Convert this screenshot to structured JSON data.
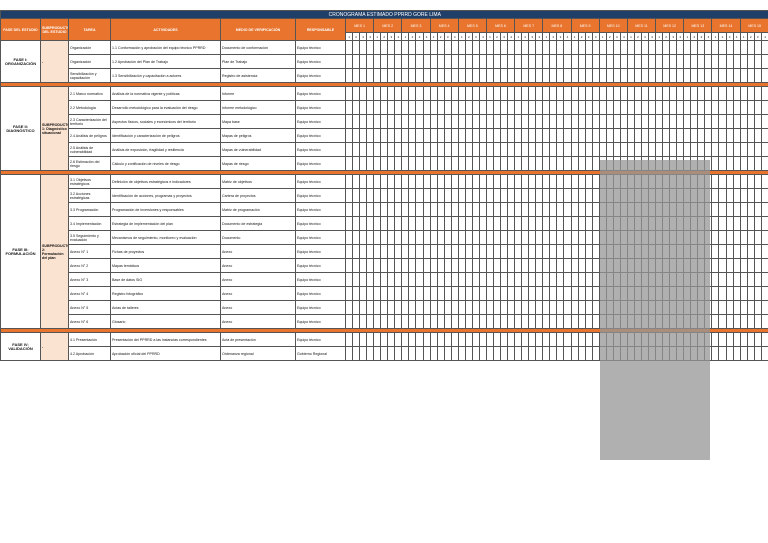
{
  "header": {
    "title": "CRONOGRAMA ESTIMADO PPRRD GORE LIMA",
    "columns": [
      "FASE DEL ESTUDIO",
      "SUBPRODUCTO DEL ESTUDIO",
      "TAREA",
      "ACTIVIDADES",
      "MEDIO DE VERIFICACIÓN",
      "RESPONSABLE"
    ],
    "months": [
      "MES 1",
      "MES 2",
      "MES 3",
      "MES 4",
      "MES 5",
      "MES 6",
      "MES 7",
      "MES 8",
      "MES 9",
      "MES 10",
      "MES 11",
      "MES 12",
      "MES 13",
      "MES 14",
      "MES 15"
    ],
    "weeks": [
      1,
      2,
      3,
      4
    ]
  },
  "phases": [
    {
      "name": "FASE I: ORGANIZACIÓN",
      "subproduct": "-",
      "rows": [
        [
          "Organización",
          "1.1 Conformación y aprobación del equipo técnico PPRRD",
          "Documento de conformación",
          "Equipo técnico"
        ],
        [
          "Organización",
          "1.2 Aprobación del Plan de Trabajo",
          "Plan de Trabajo",
          "Equipo técnico"
        ],
        [
          "Sensibilización y capacitación",
          "1.3 Sensibilización y capacitación a actores",
          "Registro de asistencia",
          "Equipo técnico"
        ]
      ]
    },
    {
      "name": "FASE II: DIAGNÓSTICO",
      "subproduct": "SUBPRODUCTO 1: Diagnóstico situacional",
      "rows": [
        [
          "2.1 Marco normativo",
          "Análisis de la normativa vigente y políticas",
          "Informe",
          "Equipo técnico"
        ],
        [
          "2.2 Metodología",
          "Desarrollo metodológico para la evaluación del riesgo",
          "Informe metodológico",
          "Equipo técnico"
        ],
        [
          "2.3 Caracterización del territorio",
          "Aspectos físicos, sociales y económicos del territorio",
          "Mapa base",
          "Equipo técnico"
        ],
        [
          "2.4 Análisis de peligros",
          "Identificación y caracterización de peligros",
          "Mapas de peligros",
          "Equipo técnico"
        ],
        [
          "2.5 Análisis de vulnerabilidad",
          "Análisis de exposición, fragilidad y resiliencia",
          "Mapas de vulnerabilidad",
          "Equipo técnico"
        ],
        [
          "2.6 Estimación del riesgo",
          "Cálculo y zonificación de niveles de riesgo",
          "Mapas de riesgo",
          "Equipo técnico"
        ]
      ]
    },
    {
      "name": "FASE III: FORMULACIÓN",
      "subproduct": "SUBPRODUCTO 2: Formulación del plan",
      "rows": [
        [
          "3.1 Objetivos estratégicos",
          "Definición de objetivos estratégicos e indicadores",
          "Matriz de objetivos",
          "Equipo técnico"
        ],
        [
          "3.2 Acciones estratégicas",
          "Identificación de acciones, programas y proyectos",
          "Cartera de proyectos",
          "Equipo técnico"
        ],
        [
          "3.3 Programación",
          "Programación de inversiones y responsables",
          "Matriz de programación",
          "Equipo técnico"
        ],
        [
          "3.4 Implementación",
          "Estrategia de implementación del plan",
          "Documento de estrategia",
          "Equipo técnico"
        ],
        [
          "3.5 Seguimiento y evaluación",
          "Mecanismos de seguimiento, monitoreo y evaluación",
          "Documento",
          "Equipo técnico"
        ],
        [
          "Anexo N° 1",
          "Fichas de proyectos",
          "Anexo",
          "Equipo técnico"
        ],
        [
          "Anexo N° 2",
          "Mapas temáticos",
          "Anexo",
          "Equipo técnico"
        ],
        [
          "Anexo N° 3",
          "Base de datos SIG",
          "Anexo",
          "Equipo técnico"
        ],
        [
          "Anexo N° 4",
          "Registro fotográfico",
          "Anexo",
          "Equipo técnico"
        ],
        [
          "Anexo N° 5",
          "Actas de talleres",
          "Anexo",
          "Equipo técnico"
        ],
        [
          "Anexo N° 6",
          "Glosario",
          "Anexo",
          "Equipo técnico"
        ]
      ]
    },
    {
      "name": "FASE IV: VALIDACIÓN",
      "subproduct": "-",
      "rows": [
        [
          "4.1 Presentación",
          "Presentación del PPRRD a las instancias correspondientes",
          "Acta de presentación",
          "Equipo técnico"
        ],
        [
          "4.2 Aprobación",
          "Aprobación oficial del PPRRD",
          "Ordenanza regional",
          "Gobierno Regional"
        ]
      ]
    }
  ]
}
